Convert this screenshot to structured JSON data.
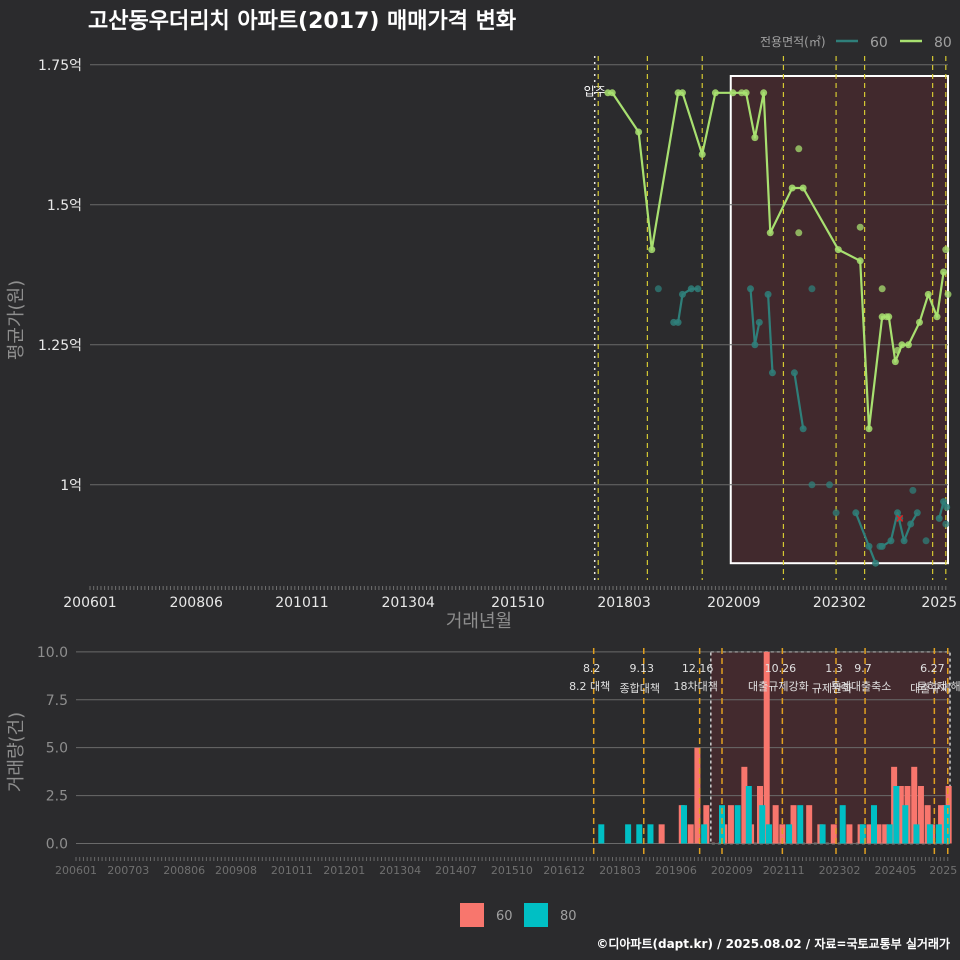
{
  "title": "고산동우더리치 아파트(2017) 매매가격 변화",
  "footer": "©디아파트(dapt.kr) / 2025.08.02 / 자료=국토교통부 실거래가",
  "colors": {
    "background": "#2b2b2d",
    "area60": "#2f7f7a",
    "area80": "#a8e070",
    "bar60": "#f8766d",
    "bar80": "#00bfc4",
    "policy": "#d4c832",
    "policy_bottom": "#e0a020",
    "highlight": "#4a2a2e"
  },
  "chart_data": [
    {
      "type": "line",
      "title": "고산동우더리치 아파트(2017) 매매가격 변화",
      "xlabel": "거래년월",
      "ylabel": "평균가(원)",
      "x_tick_labels": [
        "200601",
        "200806",
        "201011",
        "201304",
        "201510",
        "201803",
        "202009",
        "202302",
        "2025"
      ],
      "y_tick_labels": [
        "1억",
        "1.25억",
        "1.5억",
        "1.75억"
      ],
      "yticks": [
        1.0,
        1.25,
        1.5,
        1.75
      ],
      "ylim": [
        0.83,
        1.78
      ],
      "xlim": [
        2006.0,
        2025.55
      ],
      "legend_title": "전용면적(㎡)",
      "legend_position": "top-right",
      "grid": true,
      "move_in_label": "입주",
      "move_in_x": 2017.5,
      "policy_lines_x": [
        2017.58,
        2018.7,
        2019.95,
        2021.8,
        2023.0,
        2023.65,
        2025.2,
        2025.5
      ],
      "highlight_range": {
        "x": [
          2020.6,
          2025.55
        ],
        "y": [
          0.86,
          1.73
        ]
      },
      "series": [
        {
          "name": "60",
          "lines": [
            [
              [
                2019.3,
                1.29
              ],
              [
                2019.4,
                1.29
              ],
              [
                2019.5,
                1.34
              ],
              [
                2019.7,
                1.35
              ],
              [
                2019.85,
                1.35
              ]
            ],
            [
              [
                2021.05,
                1.35
              ],
              [
                2021.15,
                1.25
              ],
              [
                2021.25,
                1.29
              ]
            ],
            [
              [
                2021.45,
                1.34
              ],
              [
                2021.55,
                1.2
              ]
            ],
            [
              [
                2022.05,
                1.2
              ],
              [
                2022.25,
                1.1
              ]
            ],
            [
              [
                2023.45,
                0.95
              ],
              [
                2023.75,
                0.89
              ],
              [
                2023.9,
                0.86
              ]
            ],
            [
              [
                2024.05,
                0.89
              ],
              [
                2024.25,
                0.9
              ],
              [
                2024.4,
                0.95
              ],
              [
                2024.55,
                0.9
              ],
              [
                2024.7,
                0.93
              ],
              [
                2024.85,
                0.95
              ]
            ],
            [
              [
                2025.35,
                0.94
              ],
              [
                2025.45,
                0.97
              ],
              [
                2025.52,
                0.96
              ]
            ]
          ],
          "points": [
            [
              2018.95,
              1.35
            ],
            [
              2022.45,
              1.35
            ],
            [
              2022.45,
              1.0
            ],
            [
              2022.85,
              1.0
            ],
            [
              2023.0,
              0.95
            ],
            [
              2024.75,
              0.99
            ],
            [
              2025.05,
              0.9
            ],
            [
              2025.5,
              0.93
            ],
            [
              2024.0,
              0.89
            ],
            [
              2024.45,
              0.94
            ]
          ]
        },
        {
          "name": "80",
          "lines": [
            [
              [
                2017.8,
                1.7
              ],
              [
                2017.9,
                1.7
              ],
              [
                2018.5,
                1.63
              ],
              [
                2018.8,
                1.42
              ],
              [
                2019.4,
                1.7
              ],
              [
                2019.5,
                1.7
              ],
              [
                2019.95,
                1.59
              ],
              [
                2020.25,
                1.7
              ],
              [
                2020.65,
                1.7
              ],
              [
                2020.95,
                1.7
              ],
              [
                2021.15,
                1.62
              ],
              [
                2021.35,
                1.7
              ],
              [
                2021.5,
                1.45
              ],
              [
                2022.0,
                1.53
              ],
              [
                2022.25,
                1.53
              ],
              [
                2023.05,
                1.42
              ],
              [
                2023.55,
                1.4
              ],
              [
                2023.75,
                1.1
              ],
              [
                2024.05,
                1.3
              ],
              [
                2024.2,
                1.3
              ],
              [
                2024.35,
                1.22
              ],
              [
                2024.5,
                1.25
              ],
              [
                2024.65,
                1.25
              ],
              [
                2024.9,
                1.29
              ],
              [
                2025.1,
                1.34
              ],
              [
                2025.3,
                1.3
              ],
              [
                2025.45,
                1.38
              ]
            ]
          ],
          "points": [
            [
              2020.85,
              1.7
            ],
            [
              2022.15,
              1.6
            ],
            [
              2022.15,
              1.45
            ],
            [
              2023.55,
              1.46
            ],
            [
              2024.05,
              1.35
            ],
            [
              2024.15,
              1.3
            ],
            [
              2024.4,
              1.24
            ],
            [
              2025.5,
              1.42
            ],
            [
              2025.55,
              1.34
            ]
          ]
        }
      ]
    },
    {
      "type": "bar",
      "ylabel": "거래량(건)",
      "ylim": [
        -0.6,
        10.2
      ],
      "yticks": [
        0.0,
        2.5,
        5.0,
        7.5,
        10.0
      ],
      "y_tick_labels": [
        "0.0",
        "2.5",
        "5.0",
        "7.5",
        "10.0"
      ],
      "x_tick_labels": [
        "200601",
        "200703",
        "200806",
        "200908",
        "201011",
        "201201",
        "201304",
        "201407",
        "201510",
        "201612",
        "201803",
        "201906",
        "202009",
        "202111",
        "202302",
        "202405",
        "2025"
      ],
      "xlim": [
        2006.0,
        2025.55
      ],
      "grid": true,
      "legend_position": "bottom",
      "highlight_range": {
        "x": [
          2020.2,
          2025.55
        ],
        "y": [
          0.0,
          10.0
        ]
      },
      "policies": [
        {
          "x": 2017.58,
          "date": "8.2",
          "label": "8.2 대책"
        },
        {
          "x": 2018.7,
          "date": "9.13",
          "label": "종합대책"
        },
        {
          "x": 2019.95,
          "date": "12.16",
          "label": "18차대책"
        },
        {
          "x": 2020.45,
          "date": "",
          "label": ""
        },
        {
          "x": 2021.8,
          "date": "10.26",
          "label": "대출규제강화"
        },
        {
          "x": 2023.0,
          "date": "1.3",
          "label": "규제완화"
        },
        {
          "x": 2023.65,
          "date": "9.7",
          "label": "특례대출축소"
        },
        {
          "x": 2025.2,
          "date": "6.27",
          "label": "대출규제"
        },
        {
          "x": 2025.5,
          "date": "",
          "label": "토허제 해제"
        }
      ],
      "series": [
        {
          "name": "60",
          "bars": [
            [
              2019.1,
              1
            ],
            [
              2019.55,
              2
            ],
            [
              2019.75,
              1
            ],
            [
              2019.9,
              5
            ],
            [
              2020.1,
              2
            ],
            [
              2020.5,
              1
            ],
            [
              2020.65,
              2
            ],
            [
              2020.95,
              4
            ],
            [
              2021.1,
              1
            ],
            [
              2021.3,
              3
            ],
            [
              2021.45,
              10
            ],
            [
              2021.65,
              2
            ],
            [
              2021.8,
              1
            ],
            [
              2022.05,
              2
            ],
            [
              2022.4,
              2
            ],
            [
              2022.65,
              1
            ],
            [
              2022.95,
              1
            ],
            [
              2023.3,
              1
            ],
            [
              2023.55,
              1
            ],
            [
              2023.75,
              1
            ],
            [
              2023.95,
              1
            ],
            [
              2024.1,
              1
            ],
            [
              2024.3,
              4
            ],
            [
              2024.45,
              3
            ],
            [
              2024.6,
              3
            ],
            [
              2024.75,
              4
            ],
            [
              2024.9,
              3
            ],
            [
              2025.05,
              2
            ],
            [
              2025.15,
              1
            ],
            [
              2025.35,
              2
            ],
            [
              2025.45,
              2
            ],
            [
              2025.52,
              3
            ]
          ]
        },
        {
          "name": "80",
          "bars": [
            [
              2017.75,
              1
            ],
            [
              2018.35,
              1
            ],
            [
              2018.6,
              1
            ],
            [
              2018.85,
              1
            ],
            [
              2019.6,
              2
            ],
            [
              2020.05,
              1
            ],
            [
              2020.45,
              2
            ],
            [
              2020.8,
              2
            ],
            [
              2021.05,
              3
            ],
            [
              2021.35,
              2
            ],
            [
              2021.5,
              1
            ],
            [
              2021.95,
              1
            ],
            [
              2022.2,
              2
            ],
            [
              2022.7,
              1
            ],
            [
              2023.15,
              2
            ],
            [
              2023.6,
              1
            ],
            [
              2023.85,
              2
            ],
            [
              2024.2,
              1
            ],
            [
              2024.35,
              3
            ],
            [
              2024.55,
              2
            ],
            [
              2024.8,
              1
            ],
            [
              2025.1,
              1
            ],
            [
              2025.3,
              1
            ],
            [
              2025.48,
              2
            ]
          ]
        }
      ]
    }
  ]
}
